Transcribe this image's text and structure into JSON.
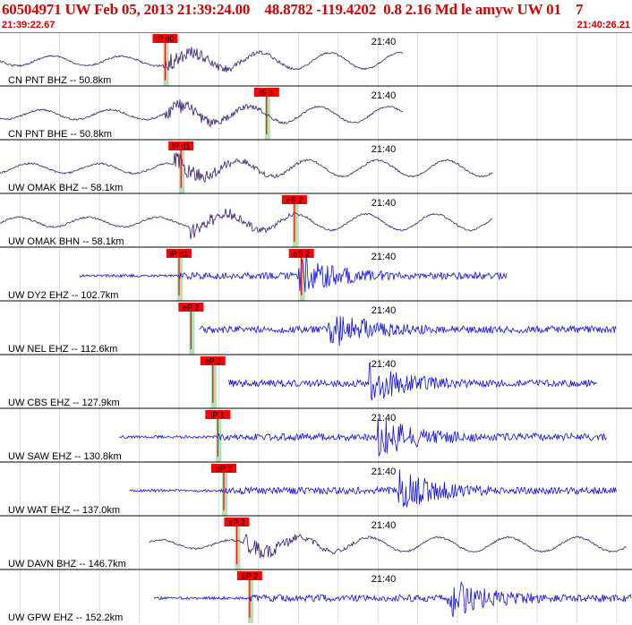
{
  "header": {
    "title": "60504971 UW Feb 05, 2013 21:39:24.00    48.8782 -119.4202  0.8 2.16 Md le amyw UW 01    7",
    "start_time": "21:39:22.67",
    "end_time": "21:40:26.21"
  },
  "colors": {
    "broadband": "#3a1a6e",
    "short_period": "#1010e0",
    "pick_box": "#ff0000",
    "pick_window": "#b4e0b4",
    "header_text": "#d40000",
    "grid": "#c8c8c8"
  },
  "chart_data": {
    "type": "line",
    "title": "60504971 UW Feb 05, 2013 21:39:24.00    48.8782 -119.4202  0.8 2.16 Md le amyw UW 01    7",
    "x_range_seconds": [
      0,
      63.54
    ],
    "time_label": "21:40",
    "time_label_seconds": 37.33,
    "grid": true,
    "traces": [
      {
        "label": "CN PNT BHZ -- 50.8km",
        "channel": "BHZ",
        "color": "broadband",
        "extent": [
          0,
          40.5
        ],
        "onset": 16.4,
        "mode": "bb",
        "picks": [
          {
            "label": "iP d0",
            "t": 16.6
          }
        ]
      },
      {
        "label": "CN PNT BHE -- 50.8km",
        "channel": "BHE",
        "color": "broadband",
        "extent": [
          0,
          40.5
        ],
        "onset": 16.4,
        "mode": "bb",
        "picks": [
          {
            "label": "iS 1",
            "t": 26.8
          }
        ]
      },
      {
        "label": "UW OMAK BHZ -- 58.1km",
        "channel": "BHZ",
        "color": "broadband",
        "extent": [
          0,
          49.5
        ],
        "onset": 17.5,
        "mode": "bb",
        "picks": [
          {
            "label": "iP d1",
            "t": 18.2
          }
        ]
      },
      {
        "label": "UW OMAK BHN -- 58.1km",
        "channel": "BHN",
        "color": "broadband",
        "extent": [
          0,
          49.5
        ],
        "onset": 19.0,
        "mode": "bb",
        "picks": [
          {
            "label": "eS 2",
            "t": 29.6
          }
        ]
      },
      {
        "label": "UW DY2 EHZ -- 102.7km",
        "channel": "EHZ",
        "color": "short_period",
        "extent": [
          8.0,
          51.0
        ],
        "onset": 30.0,
        "mode": "sp",
        "picks": [
          {
            "label": "iP d1",
            "t": 18.0
          },
          {
            "label": "eS 2",
            "t": 30.3
          }
        ]
      },
      {
        "label": "UW NEL EHZ -- 112.6km",
        "channel": "EHZ",
        "color": "short_period",
        "extent": [
          20.0,
          62.0
        ],
        "onset": 33.0,
        "mode": "sp",
        "picks": [
          {
            "label": "eP 2",
            "t": 19.2
          }
        ]
      },
      {
        "label": "UW CBS EHZ -- 127.9km",
        "channel": "EHZ",
        "color": "short_period",
        "extent": [
          23.0,
          60.0
        ],
        "onset": 37.0,
        "mode": "sp",
        "picks": [
          {
            "label": "eP 2",
            "t": 21.4
          }
        ]
      },
      {
        "label": "UW SAW EHZ -- 130.8km",
        "channel": "EHZ",
        "color": "short_period",
        "extent": [
          12.0,
          61.0
        ],
        "onset": 38.0,
        "mode": "sp",
        "picks": [
          {
            "label": "iP 1",
            "t": 21.9
          }
        ]
      },
      {
        "label": "UW WAT EHZ -- 137.0km",
        "channel": "EHZ",
        "color": "short_period",
        "extent": [
          13.0,
          62.0
        ],
        "onset": 40.0,
        "mode": "sp",
        "picks": [
          {
            "label": "eP 2",
            "t": 22.5
          }
        ]
      },
      {
        "label": "UW DAVN BHZ -- 146.7km",
        "channel": "BHZ",
        "color": "broadband",
        "extent": [
          15.0,
          63.0
        ],
        "onset": 24.5,
        "mode": "bb2",
        "picks": [
          {
            "label": "eP 2",
            "t": 23.8
          }
        ]
      },
      {
        "label": "UW GPW EHZ -- 152.2km",
        "channel": "EHZ",
        "color": "short_period",
        "extent": [
          15.5,
          63.5
        ],
        "onset": 45.0,
        "mode": "sp",
        "picks": [
          {
            "label": "eP 2",
            "t": 25.1
          }
        ]
      }
    ]
  }
}
